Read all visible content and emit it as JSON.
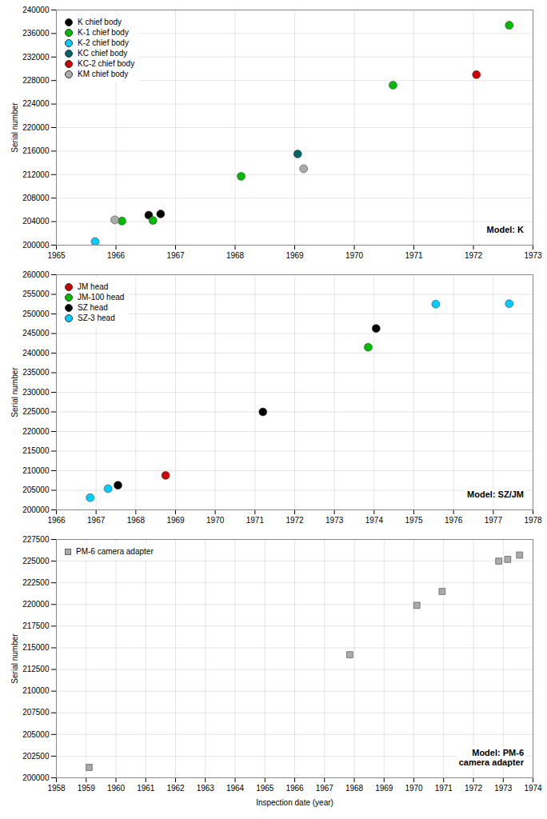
{
  "chart_data": [
    {
      "type": "scatter",
      "title": "Model: K",
      "ylabel": "Serial number",
      "xlim": [
        1965,
        1973
      ],
      "ylim": [
        200000,
        240000
      ],
      "xticks": [
        1965,
        1966,
        1967,
        1968,
        1969,
        1970,
        1971,
        1972,
        1973
      ],
      "yticks": [
        200000,
        204000,
        208000,
        212000,
        216000,
        220000,
        224000,
        228000,
        232000,
        236000,
        240000
      ],
      "grid": true,
      "legend": "upper left",
      "series": [
        {
          "name": "K chief body",
          "color": "#000000",
          "marker": "circle",
          "x": [
            1966.55,
            1966.75
          ],
          "values": [
            205100,
            205300
          ]
        },
        {
          "name": "K-1 chief body",
          "color": "#00bb00",
          "marker": "circle",
          "x": [
            1966.1,
            1966.62,
            1968.1,
            1970.65,
            1972.6
          ],
          "values": [
            204100,
            204200,
            211700,
            227200,
            237400
          ]
        },
        {
          "name": "K-2 chief body",
          "color": "#00ccff",
          "marker": "circle",
          "x": [
            1965.65
          ],
          "values": [
            200600
          ]
        },
        {
          "name": "KC chief body",
          "color": "#006666",
          "marker": "circle",
          "x": [
            1969.05
          ],
          "values": [
            215500
          ]
        },
        {
          "name": "KC-2 chief body",
          "color": "#cc0000",
          "marker": "circle",
          "x": [
            1972.05
          ],
          "values": [
            229000
          ]
        },
        {
          "name": "KM chief body",
          "color": "#aaaaaa",
          "marker": "circle",
          "x": [
            1965.98,
            1969.15
          ],
          "values": [
            204300,
            213000
          ]
        }
      ]
    },
    {
      "type": "scatter",
      "title": "Model: SZ/JM",
      "ylabel": "Serial number",
      "xlim": [
        1966,
        1978
      ],
      "ylim": [
        200000,
        260000
      ],
      "xticks": [
        1966,
        1967,
        1968,
        1969,
        1970,
        1971,
        1972,
        1973,
        1974,
        1975,
        1976,
        1977,
        1978
      ],
      "yticks": [
        200000,
        205000,
        210000,
        215000,
        220000,
        225000,
        230000,
        235000,
        240000,
        245000,
        250000,
        255000,
        260000
      ],
      "grid": true,
      "legend": "upper left",
      "series": [
        {
          "name": "JM head",
          "color": "#cc0000",
          "marker": "circle",
          "x": [
            1968.75
          ],
          "values": [
            208800
          ]
        },
        {
          "name": "JM-100 head",
          "color": "#00bb00",
          "marker": "circle",
          "x": [
            1973.85
          ],
          "values": [
            241500
          ]
        },
        {
          "name": "SZ head",
          "color": "#000000",
          "marker": "circle",
          "x": [
            1967.55,
            1971.2,
            1974.05
          ],
          "values": [
            206300,
            225000,
            246300
          ]
        },
        {
          "name": "SZ-3 head",
          "color": "#00ccff",
          "marker": "circle",
          "x": [
            1966.85,
            1967.3,
            1975.55,
            1977.4
          ],
          "values": [
            203100,
            205400,
            252500,
            252600
          ]
        }
      ]
    },
    {
      "type": "scatter",
      "title": "Model: PM-6\ncamera adapter",
      "xlabel": "Inspection date (year)",
      "ylabel": "Serial number",
      "xlim": [
        1958,
        1974
      ],
      "ylim": [
        200000,
        227500
      ],
      "xticks": [
        1958,
        1959,
        1960,
        1961,
        1962,
        1963,
        1964,
        1965,
        1966,
        1967,
        1968,
        1969,
        1970,
        1971,
        1972,
        1973,
        1974
      ],
      "yticks": [
        200000,
        202500,
        205000,
        207500,
        210000,
        212500,
        215000,
        217500,
        220000,
        222500,
        225000,
        227500
      ],
      "grid": true,
      "legend": "upper left",
      "series": [
        {
          "name": "PM-6 camera adapter",
          "color": "#aaaaaa",
          "marker": "square",
          "x": [
            1959.1,
            1967.85,
            1970.1,
            1970.95,
            1972.85,
            1973.15,
            1973.55
          ],
          "values": [
            201200,
            214200,
            219900,
            221500,
            225000,
            225200,
            225700
          ]
        }
      ]
    }
  ]
}
